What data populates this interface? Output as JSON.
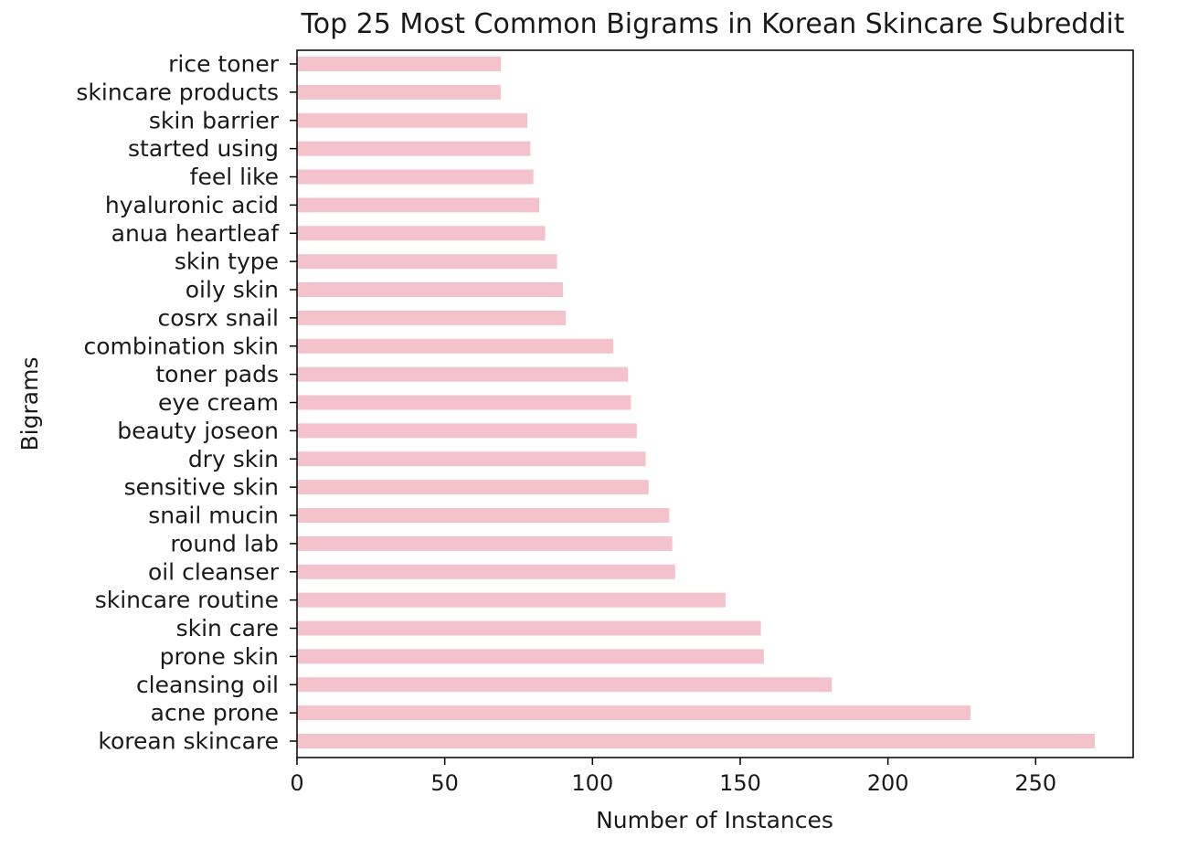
{
  "chart_data": {
    "type": "bar",
    "orientation": "horizontal",
    "title": "Top 25 Most Common Bigrams in Korean Skincare Subreddit",
    "xlabel": "Number of Instances",
    "ylabel": "Bigrams",
    "xlim": [
      0,
      283
    ],
    "xticks": [
      0,
      50,
      100,
      150,
      200,
      250
    ],
    "grid": false,
    "bar_color": "#f4c2cb",
    "categories": [
      "korean skincare",
      "acne prone",
      "cleansing oil",
      "prone skin",
      "skin care",
      "skincare routine",
      "oil cleanser",
      "round lab",
      "snail mucin",
      "sensitive skin",
      "dry skin",
      "beauty joseon",
      "eye cream",
      "toner pads",
      "combination skin",
      "cosrx snail",
      "oily skin",
      "skin type",
      "anua heartleaf",
      "hyaluronic acid",
      "feel like",
      "started using",
      "skin barrier",
      "skincare products",
      "rice toner"
    ],
    "values": [
      270,
      228,
      181,
      158,
      157,
      145,
      128,
      127,
      126,
      119,
      118,
      115,
      113,
      112,
      107,
      91,
      90,
      88,
      84,
      82,
      80,
      79,
      78,
      69,
      69
    ]
  }
}
